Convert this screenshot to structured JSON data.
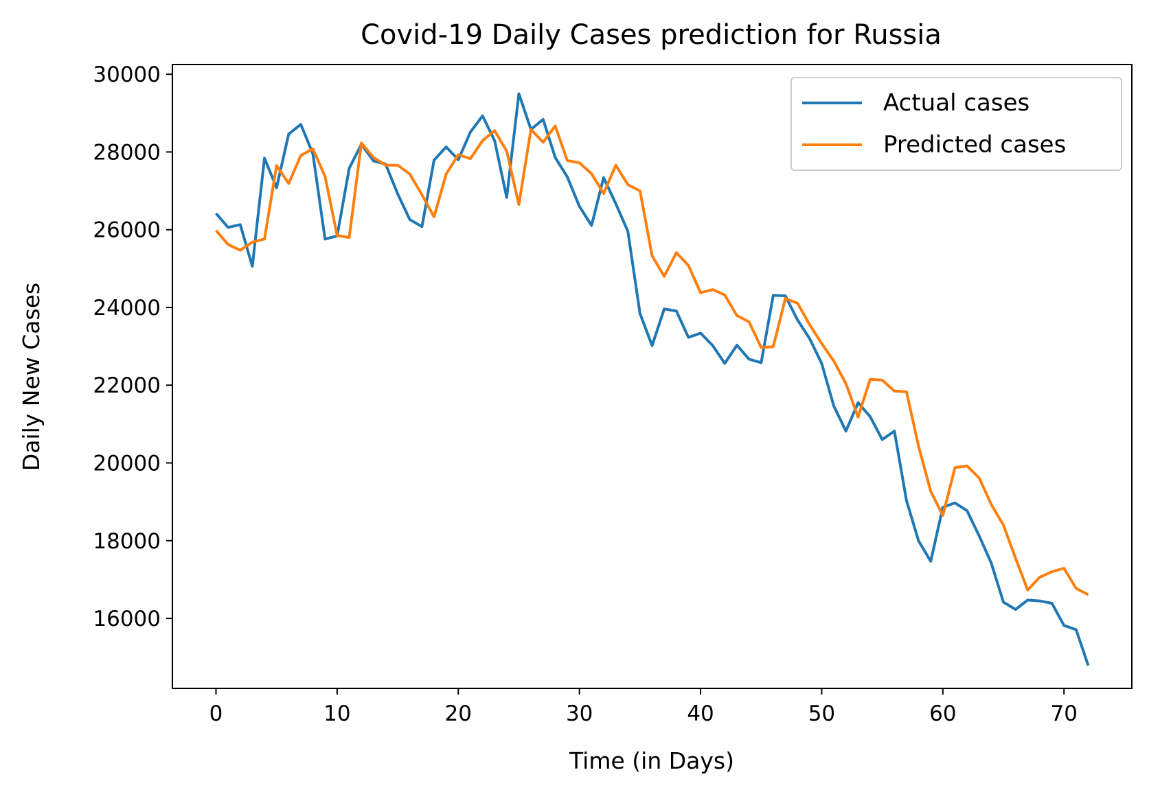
{
  "chart_data": {
    "type": "line",
    "title": "Covid-19 Daily Cases prediction for Russia",
    "xlabel": "Time (in Days)",
    "ylabel": "Daily New Cases",
    "xlim": [
      -3.6,
      75.6
    ],
    "ylim": [
      14200,
      30250
    ],
    "xticks": [
      0,
      10,
      20,
      30,
      40,
      50,
      60,
      70
    ],
    "yticks": [
      16000,
      18000,
      20000,
      22000,
      24000,
      26000,
      28000,
      30000
    ],
    "grid": false,
    "legend_position": "upper right",
    "x": [
      0,
      1,
      2,
      3,
      4,
      5,
      6,
      7,
      8,
      9,
      10,
      11,
      12,
      13,
      14,
      15,
      16,
      17,
      18,
      19,
      20,
      21,
      22,
      23,
      24,
      25,
      26,
      27,
      28,
      29,
      30,
      31,
      32,
      33,
      34,
      35,
      36,
      37,
      38,
      39,
      40,
      41,
      42,
      43,
      44,
      45,
      46,
      47,
      48,
      49,
      50,
      51,
      52,
      53,
      54,
      55,
      56,
      57,
      58,
      59,
      60,
      61,
      62,
      63,
      64,
      65,
      66,
      67,
      68,
      69,
      70,
      71,
      72
    ],
    "series": [
      {
        "name": "Actual cases",
        "color": "#1f77b4",
        "values": [
          26420,
          26060,
          26130,
          25060,
          27840,
          27080,
          28460,
          28710,
          27950,
          25760,
          25840,
          27580,
          28200,
          27770,
          27690,
          26920,
          26260,
          26080,
          27790,
          28130,
          27800,
          28510,
          28930,
          28290,
          26830,
          29500,
          28580,
          28840,
          27860,
          27360,
          26600,
          26110,
          27340,
          26670,
          25960,
          23840,
          23020,
          23960,
          23910,
          23230,
          23340,
          23020,
          22560,
          23030,
          22670,
          22580,
          24310,
          24300,
          23680,
          23200,
          22560,
          21460,
          20820,
          21550,
          21190,
          20600,
          20820,
          19030,
          17990,
          17470,
          18860,
          18970,
          18770,
          18120,
          17420,
          16420,
          16230,
          16470,
          16450,
          16390,
          15820,
          15710,
          14790
        ]
      },
      {
        "name": "Predicted cases",
        "color": "#ff7f0e",
        "values": [
          25980,
          25620,
          25470,
          25680,
          25760,
          27650,
          27190,
          27910,
          28080,
          27370,
          25850,
          25800,
          28230,
          27860,
          27660,
          27660,
          27430,
          26900,
          26330,
          27430,
          27930,
          27830,
          28290,
          28550,
          28020,
          26650,
          28580,
          28250,
          28670,
          27780,
          27720,
          27440,
          26930,
          27660,
          27160,
          27000,
          25330,
          24800,
          25410,
          25080,
          24380,
          24460,
          24320,
          23790,
          23630,
          22970,
          22990,
          24230,
          24110,
          23560,
          23070,
          22620,
          22040,
          21180,
          22150,
          22130,
          21850,
          21830,
          20420,
          19270,
          18650,
          19880,
          19920,
          19610,
          18930,
          18400,
          17550,
          16730,
          17060,
          17200,
          17290,
          16770,
          16610
        ]
      }
    ]
  }
}
